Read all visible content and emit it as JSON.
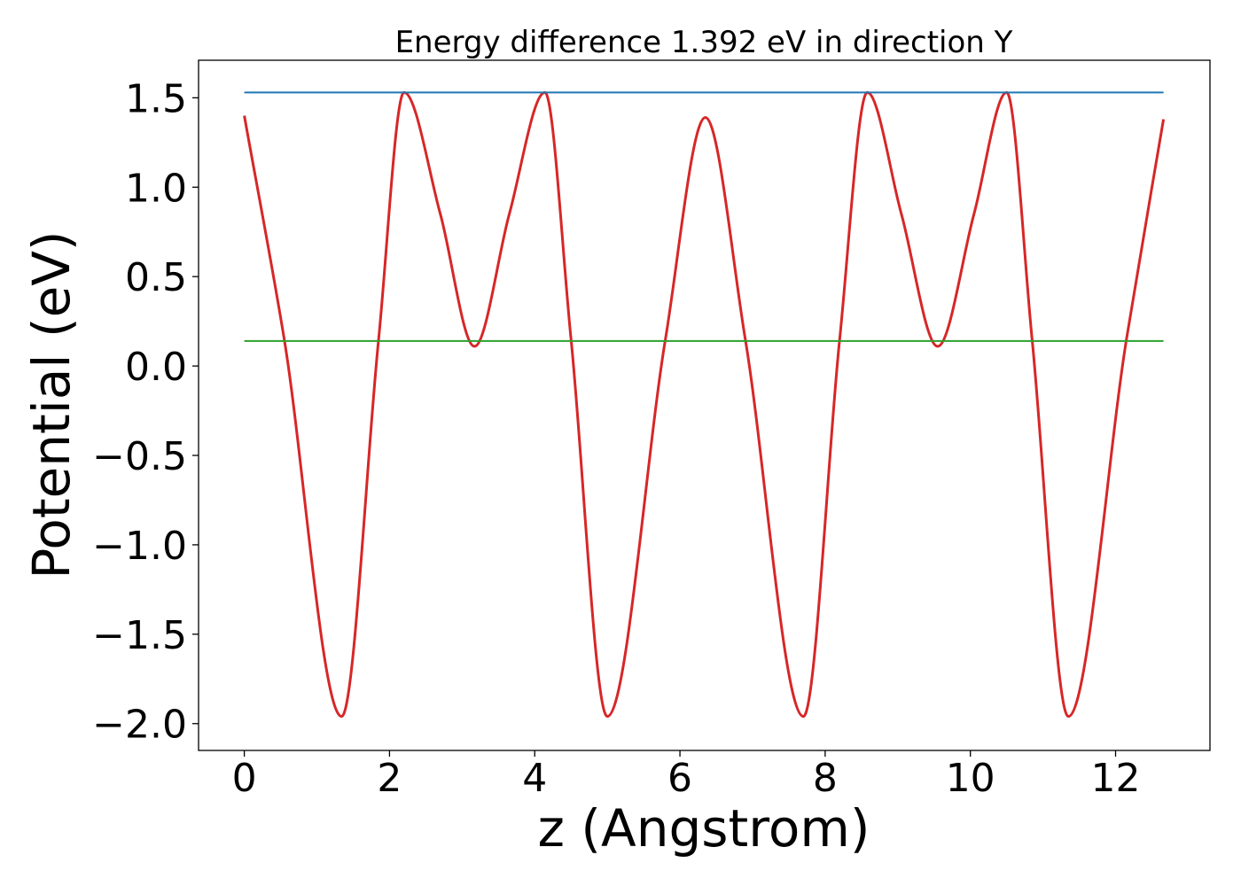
{
  "chart_data": {
    "type": "line",
    "title": "Energy difference 1.392 eV in direction Y",
    "xlabel": "z (Angstrom)",
    "ylabel": "Potential (eV)",
    "xlim": [
      -0.63,
      13.3
    ],
    "ylim": [
      -2.15,
      1.71
    ],
    "xticks": [
      0,
      2,
      4,
      6,
      8,
      10,
      12
    ],
    "xtick_labels": [
      "0",
      "2",
      "4",
      "6",
      "8",
      "10",
      "12"
    ],
    "yticks": [
      -2.0,
      -1.5,
      -1.0,
      -0.5,
      0.0,
      0.5,
      1.0,
      1.5
    ],
    "ytick_labels": [
      "−2.0",
      "−1.5",
      "−1.0",
      "−0.5",
      "0.0",
      "0.5",
      "1.0",
      "1.5"
    ],
    "grid": false,
    "legend": "none",
    "series": [
      {
        "color": "#d62728",
        "x": [
          0.0,
          0.55,
          1.34,
          1.85,
          2.2,
          2.7,
          3.17,
          3.65,
          4.14,
          4.5,
          5.0,
          5.8,
          6.35,
          6.9,
          7.7,
          8.2,
          8.58,
          9.05,
          9.55,
          10.05,
          10.5,
          10.85,
          11.35,
          12.15,
          12.66
        ],
        "y": [
          1.4,
          0.15,
          -1.96,
          0.15,
          1.53,
          0.85,
          0.11,
          0.85,
          1.53,
          0.15,
          -1.96,
          0.15,
          1.39,
          0.15,
          -1.96,
          0.15,
          1.53,
          0.85,
          0.11,
          0.85,
          1.53,
          0.15,
          -1.96,
          0.15,
          1.38
        ]
      },
      {
        "color": "#1f77b4",
        "x": [
          0.0,
          12.66
        ],
        "y": [
          1.53,
          1.53
        ]
      },
      {
        "color": "#2ca02c",
        "x": [
          0.0,
          12.66
        ],
        "y": [
          0.14,
          0.14
        ]
      }
    ]
  }
}
